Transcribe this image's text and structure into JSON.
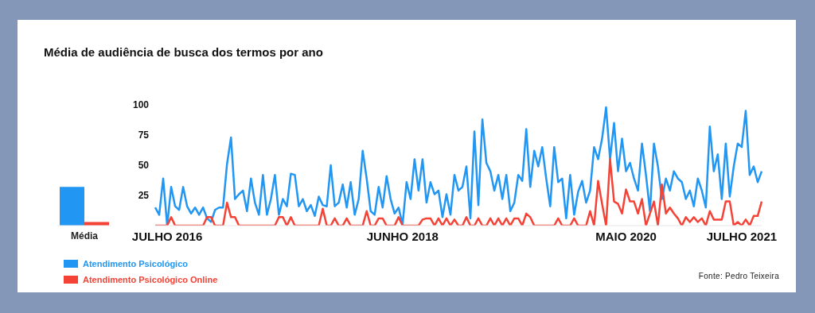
{
  "chart_data": [
    {
      "type": "bar",
      "categories": [
        "Média"
      ],
      "ylim": [
        0,
        100
      ],
      "tick_labels": "x",
      "series": [
        {
          "color": "#2196f3",
          "values": [
            32
          ]
        },
        {
          "color": "#f44336",
          "values": [
            3
          ]
        }
      ]
    },
    {
      "type": "line",
      "title": "Média de audiência de busca dos termos por ano",
      "legend": "bottom left",
      "annotations": [
        "Fonte: Pedro Teixeira"
      ],
      "ylim": [
        0,
        100
      ],
      "yticks": [
        25,
        50,
        75,
        100
      ],
      "categories": [
        null,
        null,
        null,
        "JULHO 2016",
        null,
        null,
        null,
        null,
        null,
        null,
        null,
        null,
        null,
        null,
        null,
        null,
        null,
        null,
        null,
        null,
        null,
        null,
        null,
        null,
        null,
        null,
        null,
        null,
        null,
        null,
        null,
        null,
        null,
        null,
        null,
        null,
        null,
        null,
        null,
        null,
        null,
        null,
        null,
        null,
        null,
        null,
        null,
        null,
        null,
        null,
        null,
        null,
        null,
        null,
        null,
        null,
        null,
        null,
        null,
        null,
        null,
        null,
        "JUNHO 2018",
        null,
        null,
        null,
        null,
        null,
        null,
        null,
        null,
        null,
        null,
        null,
        null,
        null,
        null,
        null,
        null,
        null,
        null,
        null,
        null,
        null,
        null,
        null,
        null,
        null,
        null,
        null,
        null,
        null,
        null,
        null,
        null,
        null,
        null,
        null,
        null,
        null,
        null,
        null,
        null,
        null,
        null,
        null,
        null,
        null,
        null,
        null,
        null,
        null,
        null,
        null,
        null,
        null,
        null,
        null,
        "MAIO 2020",
        null,
        null,
        null,
        null,
        null,
        null,
        null,
        null,
        null,
        null,
        null,
        null,
        null,
        null,
        null,
        null,
        null,
        null,
        null,
        null,
        null,
        null,
        null,
        null,
        null,
        null,
        null,
        null,
        "JULHO 2021",
        null,
        null,
        null,
        null,
        null
      ],
      "series": [
        {
          "name": "Atendimento Psicológico",
          "color": "#2196f3",
          "values": [
            15,
            9,
            39,
            0,
            32,
            16,
            13,
            32,
            16,
            10,
            15,
            9,
            15,
            6,
            3,
            13,
            15,
            15,
            51,
            73,
            22,
            26,
            29,
            12,
            39,
            19,
            9,
            42,
            9,
            22,
            42,
            9,
            22,
            16,
            43,
            42,
            16,
            22,
            12,
            17,
            8,
            24,
            17,
            16,
            50,
            16,
            19,
            34,
            15,
            36,
            9,
            22,
            62,
            39,
            12,
            9,
            32,
            15,
            41,
            22,
            10,
            15,
            1,
            36,
            22,
            55,
            29,
            55,
            19,
            36,
            26,
            29,
            7,
            26,
            9,
            42,
            29,
            32,
            49,
            6,
            78,
            17,
            88,
            52,
            45,
            29,
            42,
            22,
            42,
            12,
            19,
            42,
            37,
            80,
            32,
            62,
            49,
            65,
            39,
            16,
            65,
            36,
            39,
            6,
            42,
            9,
            28,
            37,
            19,
            29,
            65,
            55,
            72,
            98,
            55,
            85,
            45,
            72,
            45,
            52,
            39,
            29,
            68,
            42,
            12,
            68,
            49,
            22,
            39,
            29,
            45,
            39,
            36,
            22,
            29,
            16,
            39,
            29,
            15,
            82,
            45,
            59,
            22,
            68,
            24,
            49,
            68,
            65,
            95,
            42,
            49,
            36,
            45
          ]
        },
        {
          "name": "Atendimento Psicológico Online",
          "color": "#f44336",
          "values": [
            0,
            0,
            0,
            0,
            7,
            0,
            0,
            0,
            0,
            0,
            0,
            0,
            0,
            7,
            7,
            0,
            0,
            0,
            19,
            7,
            7,
            0,
            0,
            0,
            0,
            0,
            0,
            0,
            0,
            0,
            0,
            7,
            7,
            0,
            7,
            0,
            0,
            0,
            0,
            0,
            0,
            0,
            14,
            0,
            0,
            6,
            0,
            0,
            6,
            0,
            0,
            0,
            0,
            12,
            0,
            0,
            6,
            6,
            0,
            0,
            0,
            7,
            0,
            0,
            0,
            0,
            0,
            5,
            6,
            6,
            0,
            6,
            0,
            6,
            0,
            5,
            0,
            0,
            7,
            0,
            0,
            6,
            0,
            0,
            6,
            0,
            6,
            0,
            6,
            0,
            6,
            6,
            0,
            10,
            7,
            0,
            0,
            0,
            0,
            0,
            0,
            6,
            0,
            0,
            0,
            6,
            0,
            0,
            0,
            12,
            0,
            37,
            18,
            0,
            55,
            20,
            18,
            10,
            30,
            20,
            20,
            10,
            22,
            0,
            10,
            20,
            0,
            34,
            10,
            15,
            10,
            6,
            0,
            7,
            3,
            7,
            3,
            6,
            0,
            12,
            5,
            5,
            5,
            20,
            20,
            0,
            3,
            0,
            5,
            0,
            8,
            8,
            20
          ]
        }
      ]
    }
  ]
}
